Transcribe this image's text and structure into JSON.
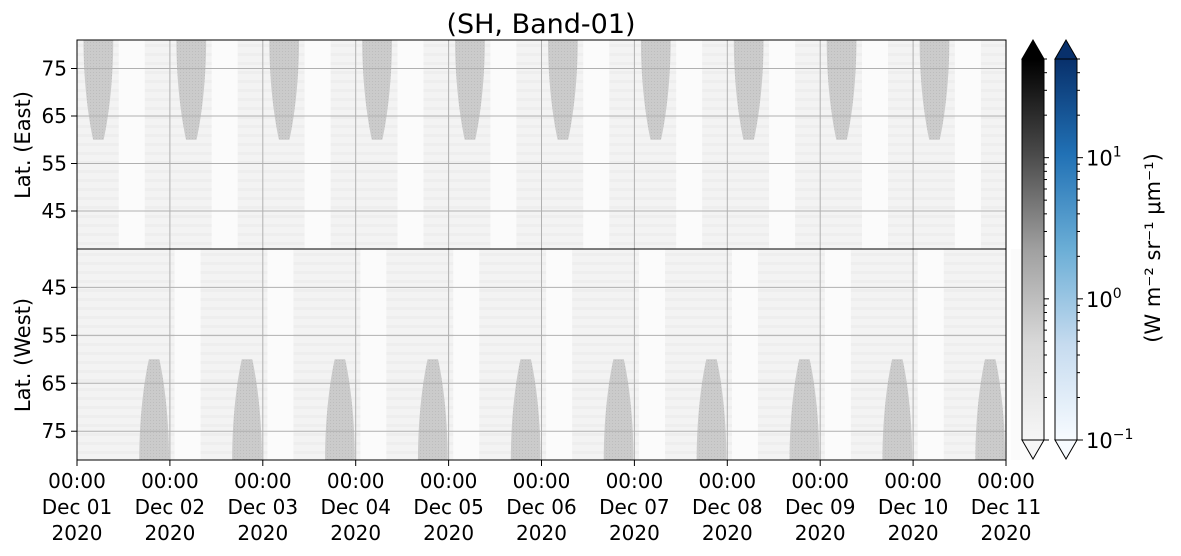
{
  "chart_data": {
    "type": "heatmap",
    "title": "(SH, Band-01)",
    "panels": [
      {
        "name": "east",
        "ylabel": "Lat. (East)",
        "yticks": [
          45,
          55,
          65,
          75
        ],
        "ylim": [
          37,
          81
        ],
        "y_inverted": false
      },
      {
        "name": "west",
        "ylabel": "Lat. (West)",
        "yticks": [
          75,
          65,
          55,
          45
        ],
        "ylim": [
          81,
          37
        ],
        "y_inverted": true
      }
    ],
    "x_ticks": [
      {
        "time": "00:00",
        "date": "Dec 01",
        "year": "2020"
      },
      {
        "time": "00:00",
        "date": "Dec 02",
        "year": "2020"
      },
      {
        "time": "00:00",
        "date": "Dec 03",
        "year": "2020"
      },
      {
        "time": "00:00",
        "date": "Dec 04",
        "year": "2020"
      },
      {
        "time": "00:00",
        "date": "Dec 05",
        "year": "2020"
      },
      {
        "time": "00:00",
        "date": "Dec 06",
        "year": "2020"
      },
      {
        "time": "00:00",
        "date": "Dec 07",
        "year": "2020"
      },
      {
        "time": "00:00",
        "date": "Dec 08",
        "year": "2020"
      },
      {
        "time": "00:00",
        "date": "Dec 09",
        "year": "2020"
      },
      {
        "time": "00:00",
        "date": "Dec 10",
        "year": "2020"
      },
      {
        "time": "00:00",
        "date": "Dec 11",
        "year": "2020"
      }
    ],
    "xlim": [
      "2020-12-01 00:00",
      "2020-12-11 00:00"
    ],
    "grid": true,
    "gap_days": {
      "east": [
        0.23,
        1.23,
        2.23,
        3.23,
        4.23,
        5.23,
        6.23,
        7.23,
        8.23,
        9.23
      ],
      "west": [
        0.83,
        1.83,
        2.83,
        3.83,
        4.83,
        5.83,
        6.83,
        7.83,
        8.83,
        9.83
      ]
    },
    "gap_max_lat": 60,
    "gap_half_width_days": 0.16,
    "colorbars": [
      {
        "name": "grey",
        "colormap": "Greys",
        "extend": "both"
      },
      {
        "name": "blue",
        "colormap": "Blues",
        "extend": "both"
      }
    ],
    "colorbar_scale": "log",
    "colorbar_range": [
      0.1,
      50
    ],
    "colorbar_ticks": [
      {
        "mantissa": "10",
        "exponent": "1",
        "value": 10
      },
      {
        "mantissa": "10",
        "exponent": "0",
        "value": 1
      },
      {
        "mantissa": "10",
        "exponent": "−1",
        "value": 0.1
      }
    ],
    "colorbar_label": "(W m⁻² sr⁻¹ μm⁻¹)",
    "colors": {
      "gap_fill": "#c6c6c6",
      "background": "#f3f3f3",
      "light_band": "#fbfbfb",
      "grid": "#b0b0b0",
      "grey_top": "#000000",
      "grey_bottom": "#f6f6f6",
      "blue_top": "#08306b",
      "blue_bottom": "#f7fbff"
    }
  }
}
